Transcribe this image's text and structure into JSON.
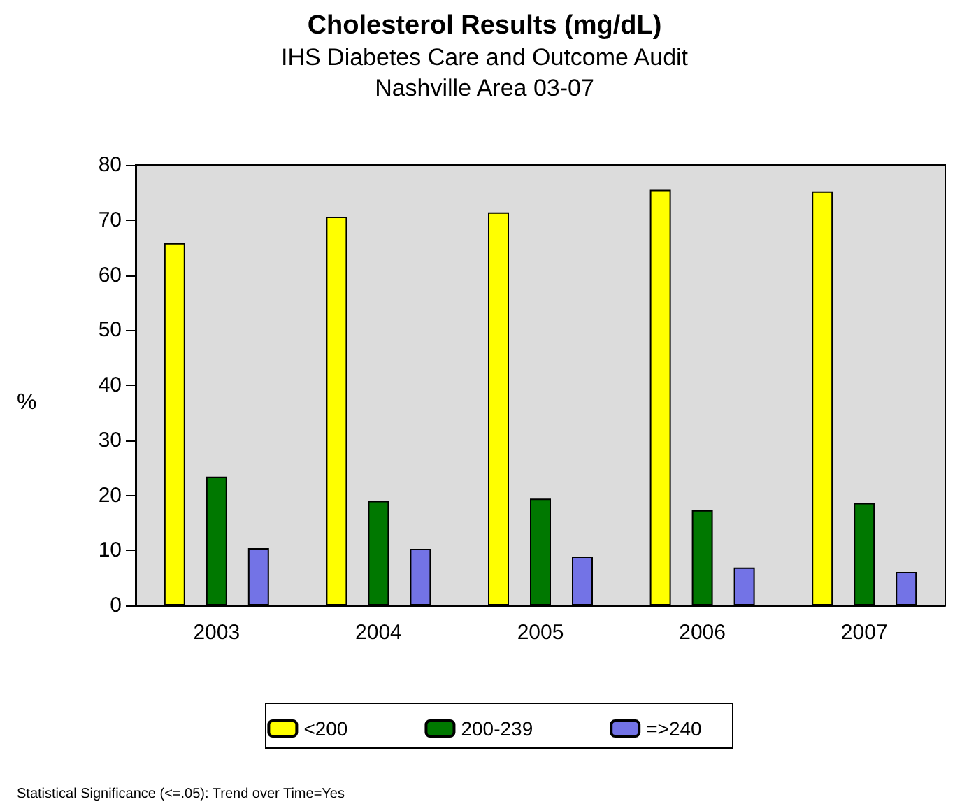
{
  "chart_data": {
    "type": "bar",
    "title": "Cholesterol Results (mg/dL)",
    "subtitle": "IHS Diabetes Care and Outcome Audit\nNashville Area 03-07",
    "ylabel": "%",
    "categories": [
      "2003",
      "2004",
      "2005",
      "2006",
      "2007"
    ],
    "series": [
      {
        "name": "<200",
        "color": "#ffff00",
        "values": [
          65.8,
          70.6,
          71.4,
          75.5,
          75.2
        ]
      },
      {
        "name": "200-239",
        "color": "#007800",
        "values": [
          23.4,
          19.0,
          19.4,
          17.3,
          18.6
        ]
      },
      {
        "name": "=>240",
        "color": "#7373e6",
        "values": [
          10.4,
          10.3,
          8.9,
          6.9,
          6.1
        ]
      }
    ],
    "ylim": [
      0,
      80
    ],
    "yticks": [
      0,
      10,
      20,
      30,
      40,
      50,
      60,
      70,
      80
    ],
    "grid": false,
    "legend": "bottom",
    "annotations": [
      "Statistical Significance (<=.05): Trend over Time=Yes"
    ]
  }
}
